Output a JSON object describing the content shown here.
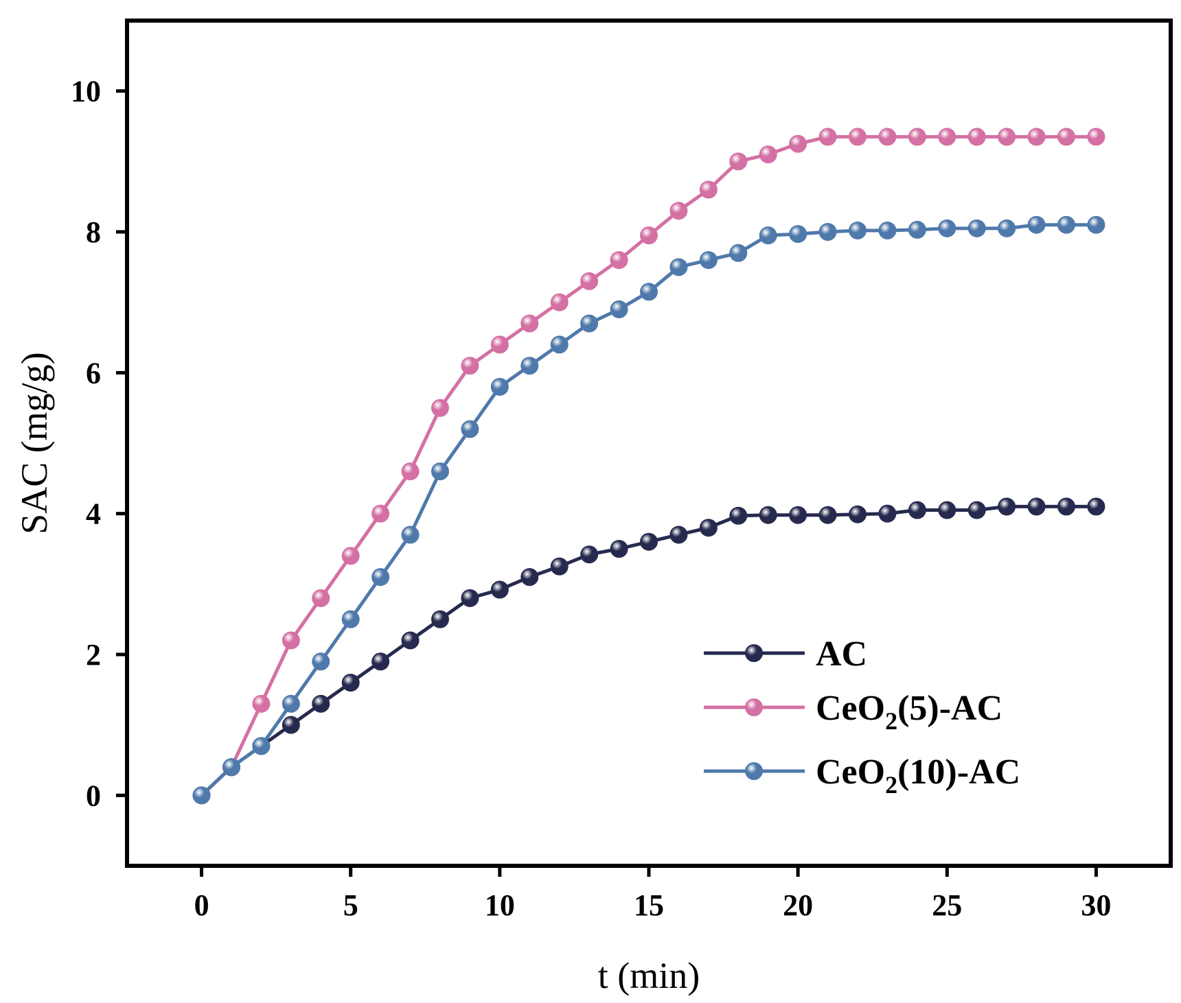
{
  "chart_data": {
    "type": "line",
    "title": "",
    "xlabel": "t (min)",
    "ylabel": "SAC (mg/g)",
    "xlim": [
      -2.5,
      32.5
    ],
    "ylim": [
      -1,
      11
    ],
    "xticks": [
      0,
      5,
      10,
      15,
      20,
      25,
      30
    ],
    "yticks": [
      0,
      2,
      4,
      6,
      8,
      10
    ],
    "grid": false,
    "legend_position": "bottom-right",
    "x": [
      0,
      1,
      2,
      3,
      4,
      5,
      6,
      7,
      8,
      9,
      10,
      11,
      12,
      13,
      14,
      15,
      16,
      17,
      18,
      19,
      20,
      21,
      22,
      23,
      24,
      25,
      26,
      27,
      28,
      29,
      30
    ],
    "series": [
      {
        "name": "AC",
        "legend_parts": [
          "AC"
        ],
        "color": "#262a4e",
        "values": [
          0,
          0.4,
          0.7,
          1.0,
          1.3,
          1.6,
          1.9,
          2.2,
          2.5,
          2.8,
          2.92,
          3.1,
          3.25,
          3.42,
          3.5,
          3.6,
          3.7,
          3.8,
          3.97,
          3.98,
          3.98,
          3.98,
          3.99,
          4.0,
          4.05,
          4.05,
          4.05,
          4.1,
          4.1,
          4.1,
          4.1
        ]
      },
      {
        "name": "CeO2(5)-AC",
        "legend_parts": [
          "CeO",
          "2",
          "(5)-AC"
        ],
        "color": "#d470a3",
        "values": [
          0,
          0.4,
          1.3,
          2.2,
          2.8,
          3.4,
          4.0,
          4.6,
          5.5,
          6.1,
          6.4,
          6.7,
          7.0,
          7.3,
          7.6,
          7.95,
          8.3,
          8.6,
          9.0,
          9.1,
          9.25,
          9.35,
          9.35,
          9.35,
          9.35,
          9.35,
          9.35,
          9.35,
          9.35,
          9.35,
          9.35
        ]
      },
      {
        "name": "CeO2(10)-AC",
        "legend_parts": [
          "CeO",
          "2",
          "(10)-AC"
        ],
        "color": "#4f79ab",
        "values": [
          0,
          0.4,
          0.7,
          1.3,
          1.9,
          2.5,
          3.1,
          3.7,
          4.6,
          5.2,
          5.8,
          6.1,
          6.4,
          6.7,
          6.9,
          7.15,
          7.5,
          7.6,
          7.7,
          7.95,
          7.97,
          8.0,
          8.02,
          8.02,
          8.03,
          8.05,
          8.05,
          8.05,
          8.1,
          8.1,
          8.1
        ]
      }
    ]
  }
}
